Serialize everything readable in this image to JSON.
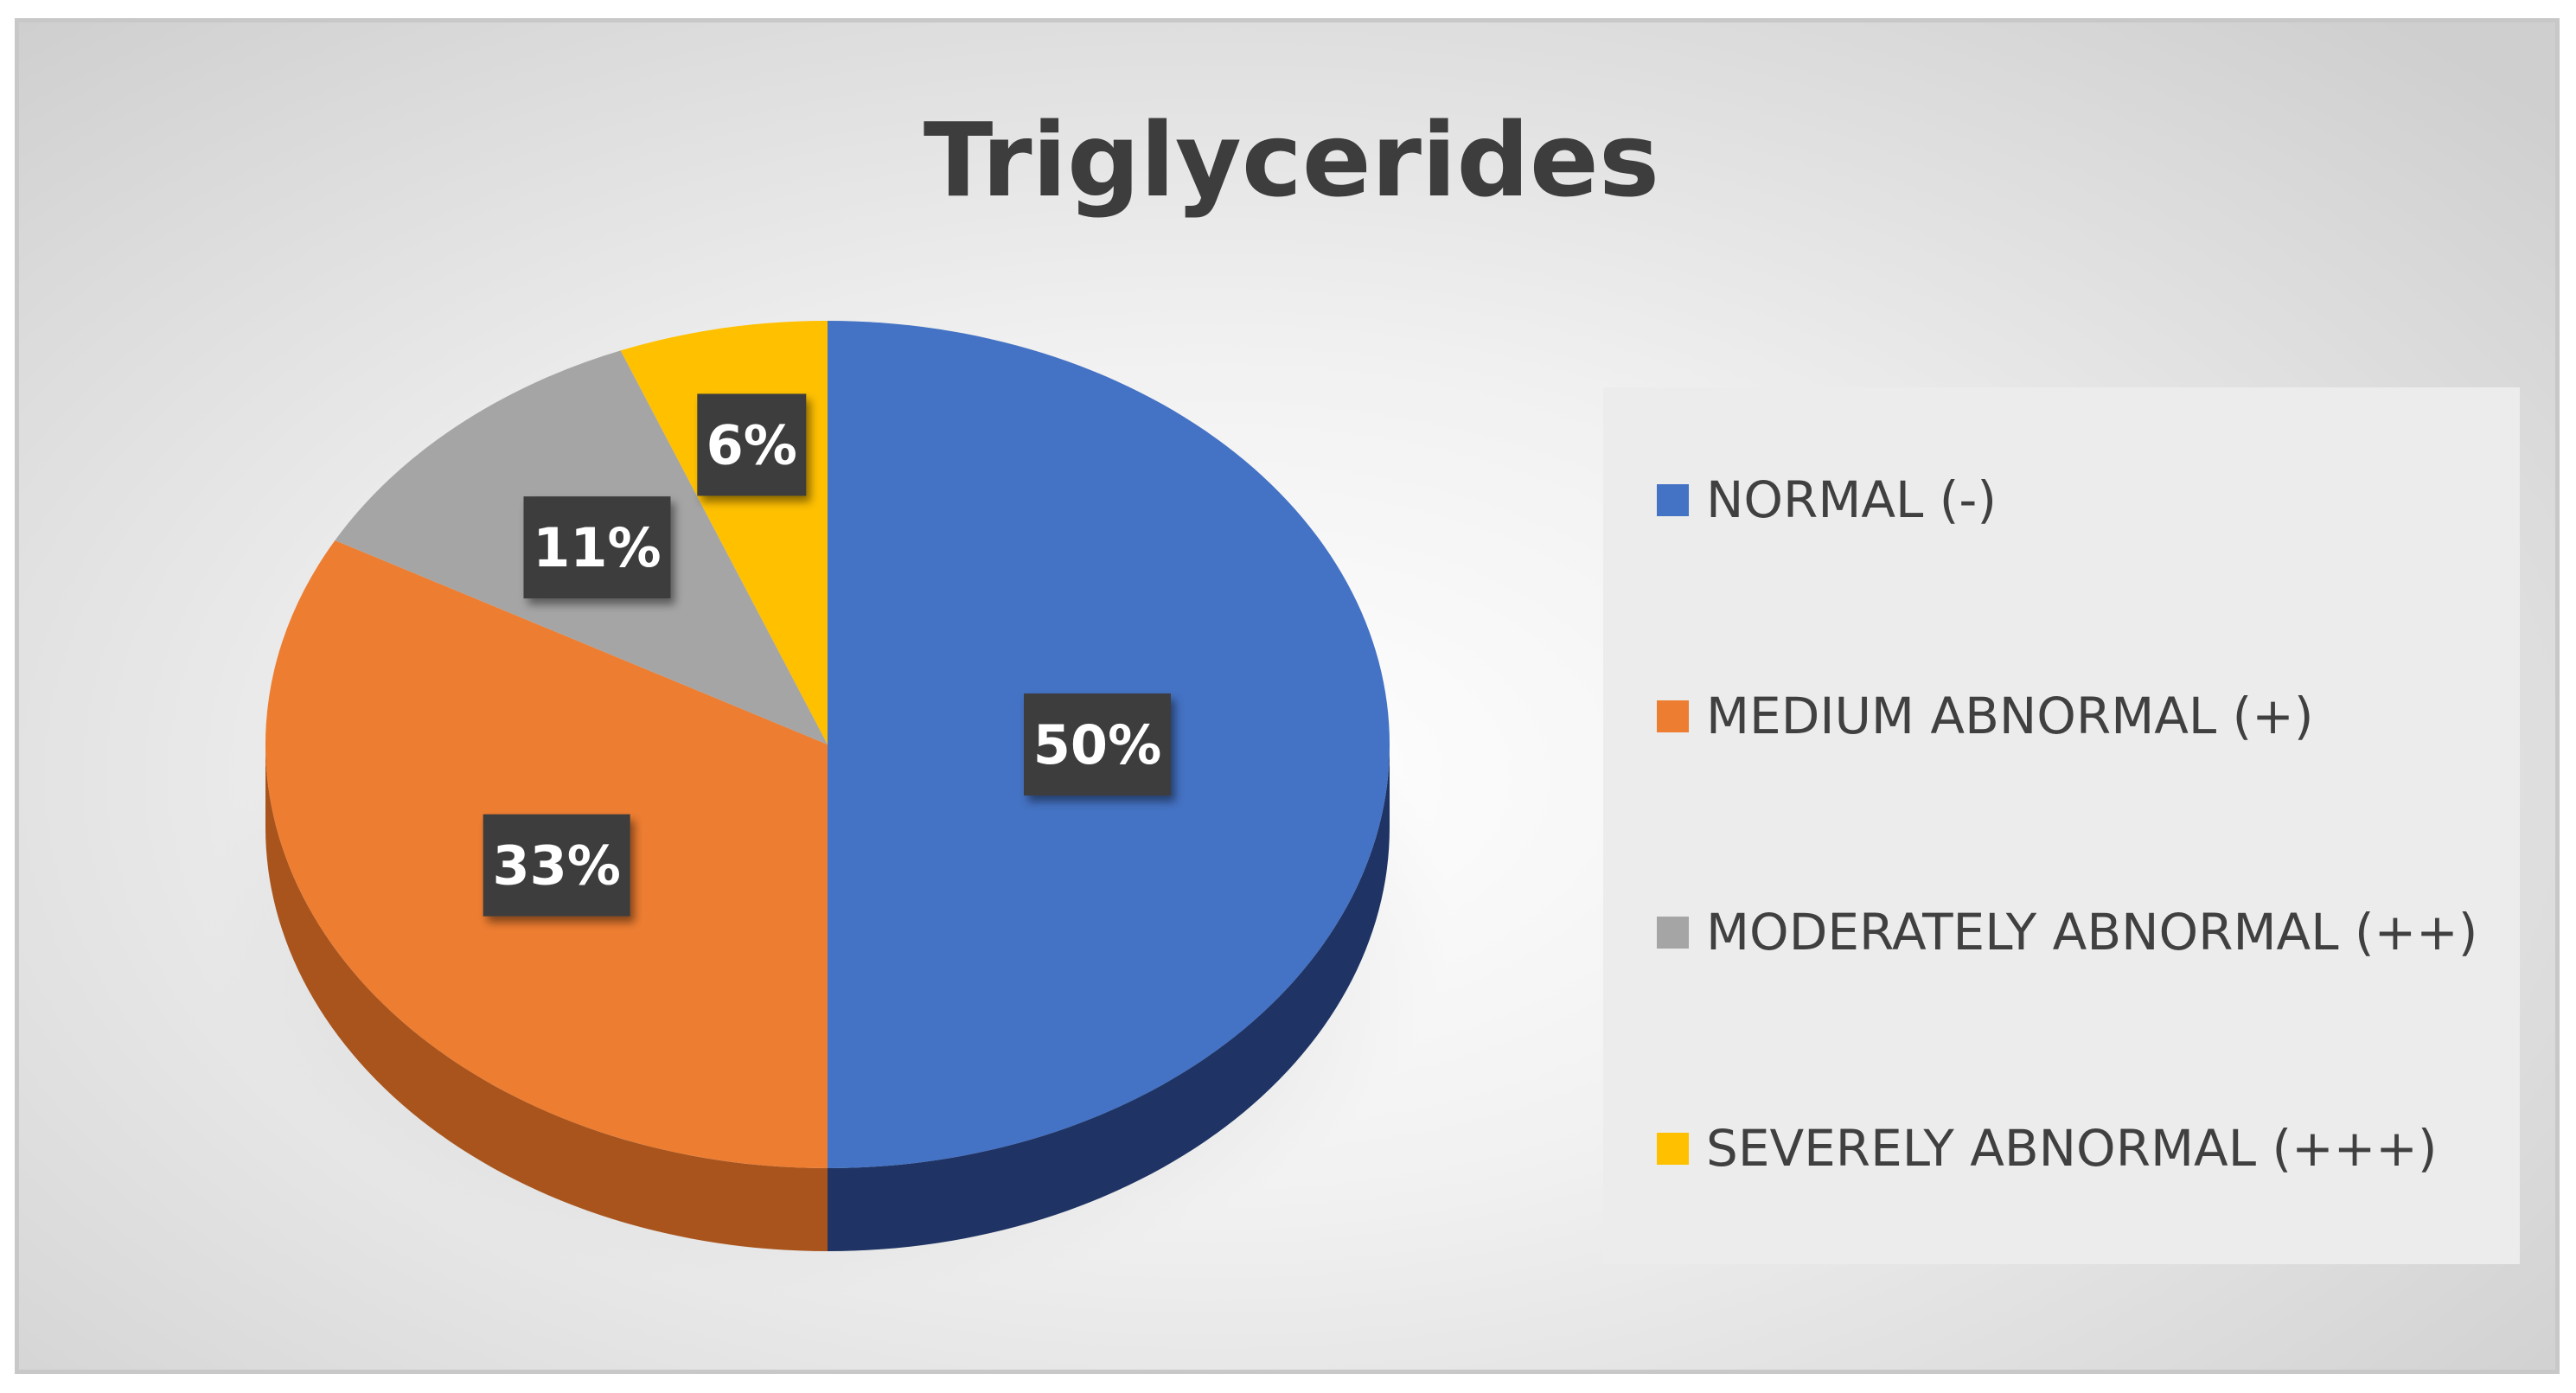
{
  "chart_data": {
    "type": "pie",
    "title": "Triglycerides",
    "legend": "right",
    "slices": [
      {
        "label": "NORMAL (-)",
        "value": 50,
        "data_label": "50%",
        "color": "#4472C4",
        "side_color": "#1F3464"
      },
      {
        "label": "MEDIUM ABNORMAL (+)",
        "value": 33,
        "data_label": "33%",
        "color": "#ED7D31",
        "side_color": "#A9541C"
      },
      {
        "label": "MODERATELY ABNORMAL (++)",
        "value": 11,
        "data_label": "11%",
        "color": "#A5A5A5",
        "side_color": "#6E6E6E"
      },
      {
        "label": "SEVERELY ABNORMAL (+++)",
        "value": 6,
        "data_label": "6%",
        "color": "#FFC000",
        "side_color": "#B38600"
      }
    ]
  }
}
